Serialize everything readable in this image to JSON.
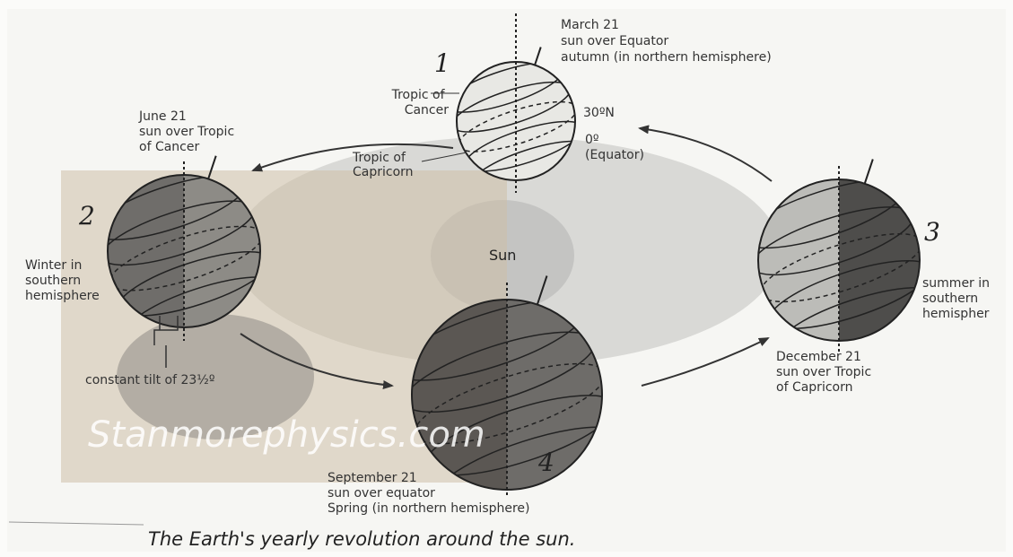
{
  "diagram": {
    "caption": "The Earth's yearly revolution around the sun.",
    "watermark": "Stanmorephysics.com",
    "sun_label": "Sun",
    "tilt_label": "constant tilt of 23½º",
    "positions": [
      {
        "number": "1",
        "lines": [
          "March 21",
          "sun over Equator",
          "autumn (in northern hemisphere)"
        ]
      },
      {
        "number": "2",
        "lines": [
          "June 21",
          "sun over Tropic",
          "of Cancer"
        ],
        "season": [
          "Winter in",
          "southern",
          "hemisphere"
        ]
      },
      {
        "number": "3",
        "lines": [
          "December 21",
          "sun over Tropic",
          "of Capricorn"
        ],
        "season": [
          "summer in",
          "southern",
          "hemispher"
        ]
      },
      {
        "number": "4",
        "lines": [
          "September 21",
          "sun over equator",
          "Spring (in northern hemisphere)"
        ]
      }
    ],
    "globe_labels": {
      "tropic_of_cancer": [
        "Tropic of",
        "Cancer"
      ],
      "tropic_of_capricorn": [
        "Tropic of",
        "Capricorn"
      ],
      "latitude_30n": "30ºN",
      "equator": [
        "0º",
        "(Equator)"
      ]
    }
  }
}
